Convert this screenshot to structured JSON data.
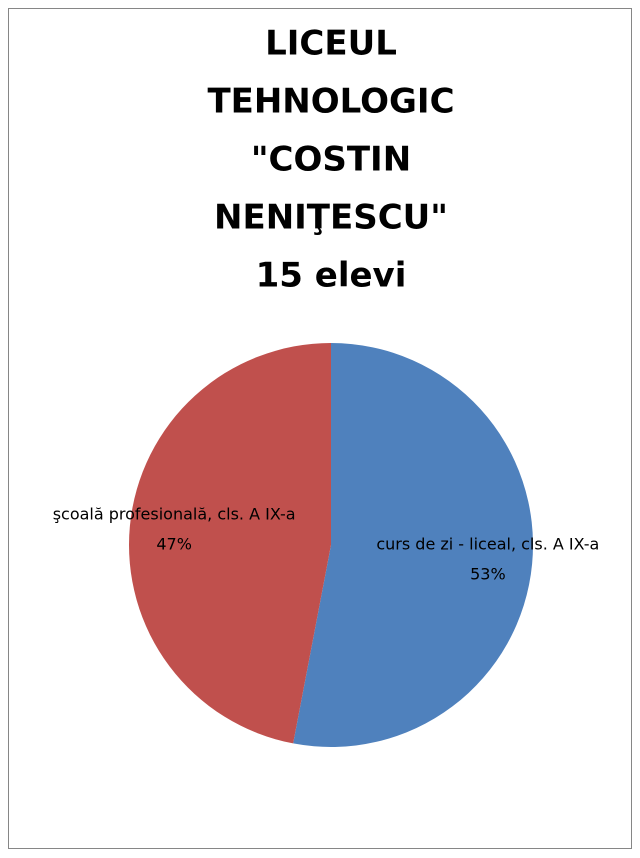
{
  "chart_data": {
    "type": "pie",
    "title": [
      "LICEUL",
      "TEHNOLOGIC",
      "\"COSTIN",
      "NENIŢESCU\"",
      "15 elevi"
    ],
    "categories": [
      "curs de zi - liceal, cls. A IX-a",
      "şcoală profesională, cls. A IX-a"
    ],
    "values": [
      53,
      47
    ],
    "value_labels": [
      "53%",
      "47%"
    ],
    "colors": [
      "#4f81bd",
      "#c0504d"
    ]
  }
}
